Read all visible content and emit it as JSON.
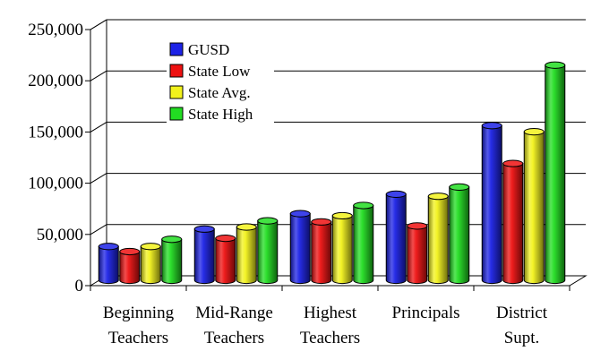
{
  "chart_data": {
    "type": "bar",
    "style": "3d-cylinder",
    "title": "",
    "xlabel": "",
    "ylabel": "",
    "ylim": [
      0,
      250000
    ],
    "yticks": [
      0,
      50000,
      100000,
      150000,
      200000,
      250000
    ],
    "ytick_labels": [
      "0",
      "50,000",
      "100,000",
      "150,000",
      "200,000",
      "250,000"
    ],
    "grid": true,
    "legend_position": "top-left",
    "categories": [
      [
        "Beginning",
        "Teachers"
      ],
      [
        "Mid-Range",
        "Teachers"
      ],
      [
        "Highest",
        "Teachers"
      ],
      [
        "Principals"
      ],
      [
        "District",
        "Supt."
      ]
    ],
    "series": [
      {
        "name": "GUSD",
        "color": "#1c22e6",
        "values": [
          33000,
          50000,
          65000,
          84000,
          151000
        ]
      },
      {
        "name": "State Low",
        "color": "#ee1111",
        "values": [
          28000,
          41000,
          57000,
          53000,
          114000
        ]
      },
      {
        "name": "State Avg.",
        "color": "#f2f21c",
        "values": [
          33000,
          52000,
          63000,
          82000,
          145000
        ]
      },
      {
        "name": "State High",
        "color": "#22dd22",
        "values": [
          40000,
          58000,
          73000,
          91000,
          210000
        ]
      }
    ]
  }
}
